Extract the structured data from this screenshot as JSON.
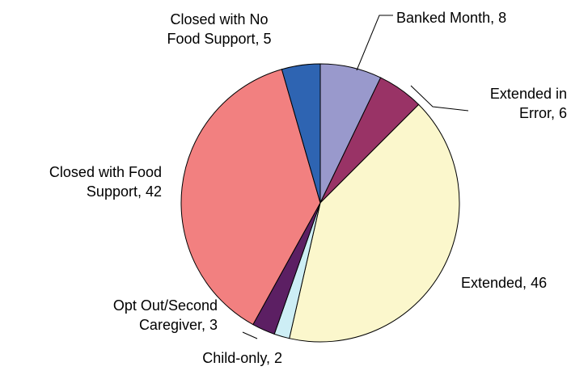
{
  "chart_data": {
    "type": "pie",
    "title": "",
    "start_angle_deg": 0,
    "direction": "clockwise",
    "slices": [
      {
        "name": "Banked Month",
        "value": 8,
        "color": "#9999cc",
        "label_lines": [
          "Banked Month, 8"
        ]
      },
      {
        "name": "Extended in Error",
        "value": 6,
        "color": "#993366",
        "label_lines": [
          "Extended in",
          "Error, 6"
        ]
      },
      {
        "name": "Extended",
        "value": 46,
        "color": "#fbf7cc",
        "label_lines": [
          "Extended, 46"
        ]
      },
      {
        "name": "Child-only",
        "value": 2,
        "color": "#cdeef5",
        "label_lines": [
          "Child-only, 2"
        ]
      },
      {
        "name": "Opt Out/Second Caregiver",
        "value": 3,
        "color": "#5c1f63",
        "label_lines": [
          "Opt Out/Second",
          "Caregiver, 3"
        ]
      },
      {
        "name": "Closed with Food Support",
        "value": 42,
        "color": "#f28080",
        "label_lines": [
          "Closed with Food",
          "Support, 42"
        ]
      },
      {
        "name": "Closed with No Food Support",
        "value": 5,
        "color": "#2e64b2",
        "label_lines": [
          "Closed with No",
          "Food Support, 5"
        ]
      }
    ],
    "legend": "none"
  }
}
